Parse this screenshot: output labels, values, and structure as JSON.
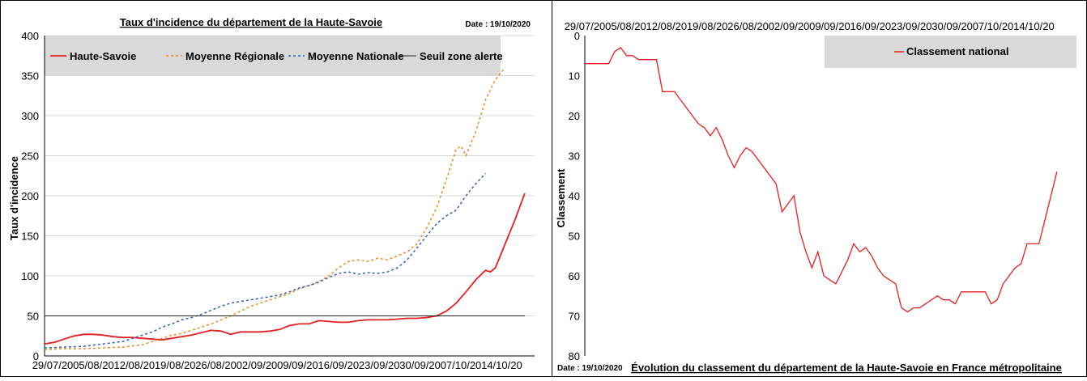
{
  "left": {
    "title": "Taux d'incidence du département de la Haute-Savoie",
    "date": "Date : 19/10/2020",
    "ylabel": "Taux d'incidence"
  },
  "right": {
    "date": "Date : 19/10/2020",
    "footer": "Évolution du classement du département de la Haute-Savoie en France métropolitaine",
    "ylabel": "Classement"
  },
  "colors": {
    "haute_savoie": "#e32020",
    "regionale": "#f08a1e",
    "nationale": "#2f5fb8",
    "seuil": "#222222",
    "legend_bg": "#d9d9d9",
    "grid": "#d9d9d9"
  },
  "chart_data": [
    {
      "type": "line",
      "title": "Taux d'incidence du département de la Haute-Savoie",
      "ylabel": "Taux d'incidence",
      "xlabel": "",
      "ylim": [
        0,
        400
      ],
      "yticks": [
        0,
        50,
        100,
        150,
        200,
        250,
        300,
        350,
        400
      ],
      "xticks": [
        "29/07/20",
        "05/08/20",
        "12/08/20",
        "19/08/20",
        "26/08/20",
        "02/09/20",
        "09/09/20",
        "16/09/20",
        "23/09/20",
        "30/09/20",
        "07/10/20",
        "14/10/20"
      ],
      "grid": "horizontal",
      "legend_position": "top",
      "series": [
        {
          "name": "Haute-Savoie",
          "style": "solid",
          "points": [
            [
              0,
              15
            ],
            [
              2,
              17
            ],
            [
              4,
              21
            ],
            [
              6,
              25
            ],
            [
              8,
              27
            ],
            [
              10,
              27
            ],
            [
              12,
              26
            ],
            [
              14,
              24
            ],
            [
              16,
              23
            ],
            [
              18,
              23
            ],
            [
              20,
              22
            ],
            [
              22,
              21
            ],
            [
              24,
              20
            ],
            [
              26,
              22
            ],
            [
              28,
              24
            ],
            [
              30,
              26
            ],
            [
              32,
              29
            ],
            [
              34,
              32
            ],
            [
              36,
              31
            ],
            [
              38,
              27
            ],
            [
              40,
              30
            ],
            [
              42,
              30
            ],
            [
              44,
              30
            ],
            [
              46,
              31
            ],
            [
              48,
              33
            ],
            [
              50,
              38
            ],
            [
              52,
              40
            ],
            [
              54,
              40
            ],
            [
              56,
              44
            ],
            [
              58,
              43
            ],
            [
              60,
              42
            ],
            [
              62,
              42
            ],
            [
              64,
              44
            ],
            [
              66,
              45
            ],
            [
              68,
              45
            ],
            [
              70,
              45
            ],
            [
              72,
              46
            ],
            [
              74,
              47
            ],
            [
              76,
              47
            ],
            [
              78,
              48
            ],
            [
              80,
              50
            ],
            [
              82,
              56
            ],
            [
              84,
              66
            ],
            [
              86,
              80
            ],
            [
              88,
              95
            ],
            [
              90,
              107
            ],
            [
              91,
              105
            ],
            [
              92,
              110
            ],
            [
              94,
              140
            ],
            [
              96,
              170
            ],
            [
              98,
              203
            ]
          ]
        },
        {
          "name": "Moyenne Régionale",
          "style": "dotted",
          "points": [
            [
              0,
              8
            ],
            [
              4,
              9
            ],
            [
              8,
              9
            ],
            [
              12,
              10
            ],
            [
              16,
              11
            ],
            [
              20,
              14
            ],
            [
              22,
              18
            ],
            [
              24,
              22
            ],
            [
              26,
              26
            ],
            [
              28,
              28
            ],
            [
              30,
              32
            ],
            [
              32,
              36
            ],
            [
              34,
              40
            ],
            [
              36,
              45
            ],
            [
              38,
              50
            ],
            [
              40,
              56
            ],
            [
              42,
              62
            ],
            [
              44,
              66
            ],
            [
              46,
              70
            ],
            [
              48,
              74
            ],
            [
              50,
              78
            ],
            [
              52,
              84
            ],
            [
              54,
              88
            ],
            [
              56,
              93
            ],
            [
              58,
              100
            ],
            [
              60,
              110
            ],
            [
              62,
              118
            ],
            [
              64,
              120
            ],
            [
              66,
              118
            ],
            [
              68,
              122
            ],
            [
              70,
              120
            ],
            [
              72,
              125
            ],
            [
              74,
              130
            ],
            [
              76,
              140
            ],
            [
              78,
              160
            ],
            [
              80,
              185
            ],
            [
              82,
              220
            ],
            [
              84,
              258
            ],
            [
              85,
              262
            ],
            [
              86,
              250
            ],
            [
              88,
              280
            ],
            [
              90,
              320
            ],
            [
              92,
              345
            ],
            [
              94,
              360
            ]
          ]
        },
        {
          "name": "Moyenne Nationale",
          "style": "dotted",
          "points": [
            [
              0,
              10
            ],
            [
              4,
              11
            ],
            [
              8,
              12
            ],
            [
              12,
              15
            ],
            [
              16,
              18
            ],
            [
              18,
              22
            ],
            [
              20,
              26
            ],
            [
              22,
              30
            ],
            [
              24,
              36
            ],
            [
              26,
              40
            ],
            [
              28,
              45
            ],
            [
              30,
              48
            ],
            [
              32,
              52
            ],
            [
              34,
              57
            ],
            [
              36,
              62
            ],
            [
              38,
              66
            ],
            [
              40,
              68
            ],
            [
              42,
              70
            ],
            [
              44,
              72
            ],
            [
              46,
              74
            ],
            [
              48,
              76
            ],
            [
              50,
              80
            ],
            [
              52,
              85
            ],
            [
              54,
              88
            ],
            [
              56,
              92
            ],
            [
              58,
              98
            ],
            [
              60,
              103
            ],
            [
              62,
              105
            ],
            [
              64,
              102
            ],
            [
              66,
              104
            ],
            [
              68,
              103
            ],
            [
              70,
              105
            ],
            [
              72,
              110
            ],
            [
              74,
              120
            ],
            [
              76,
              135
            ],
            [
              78,
              150
            ],
            [
              80,
              165
            ],
            [
              82,
              175
            ],
            [
              84,
              182
            ],
            [
              86,
              200
            ],
            [
              88,
              215
            ],
            [
              90,
              228
            ]
          ]
        },
        {
          "name": "Seuil zone alerte",
          "style": "solid",
          "points": [
            [
              0,
              50
            ],
            [
              98,
              50
            ]
          ]
        }
      ]
    },
    {
      "type": "line",
      "ylabel": "Classement",
      "xlabel": "",
      "ylim": [
        0,
        80
      ],
      "y_inverted": true,
      "yticks": [
        0,
        10,
        20,
        30,
        40,
        50,
        60,
        70,
        80
      ],
      "xticks": [
        "29/07/20",
        "05/08/20",
        "12/08/20",
        "19/08/20",
        "26/08/20",
        "02/09/20",
        "09/09/20",
        "16/09/20",
        "23/09/20",
        "30/09/20",
        "07/10/20",
        "14/10/20"
      ],
      "grid": "none",
      "legend_position": "top-right",
      "series": [
        {
          "name": "Classement national",
          "points": [
            [
              0,
              7
            ],
            [
              2,
              7
            ],
            [
              4,
              7
            ],
            [
              6,
              7
            ],
            [
              8,
              7
            ],
            [
              10,
              4
            ],
            [
              12,
              3
            ],
            [
              14,
              5
            ],
            [
              16,
              5
            ],
            [
              18,
              6
            ],
            [
              20,
              6
            ],
            [
              22,
              6
            ],
            [
              24,
              6
            ],
            [
              26,
              14
            ],
            [
              28,
              14
            ],
            [
              30,
              14
            ],
            [
              32,
              16
            ],
            [
              34,
              18
            ],
            [
              36,
              20
            ],
            [
              38,
              22
            ],
            [
              40,
              23
            ],
            [
              42,
              25
            ],
            [
              44,
              23
            ],
            [
              46,
              26
            ],
            [
              48,
              30
            ],
            [
              50,
              33
            ],
            [
              52,
              30
            ],
            [
              54,
              28
            ],
            [
              56,
              29
            ],
            [
              58,
              31
            ],
            [
              60,
              33
            ],
            [
              62,
              35
            ],
            [
              64,
              37
            ],
            [
              66,
              44
            ],
            [
              68,
              42
            ],
            [
              70,
              40
            ],
            [
              72,
              49
            ],
            [
              74,
              54
            ],
            [
              76,
              58
            ],
            [
              78,
              54
            ],
            [
              80,
              60
            ],
            [
              82,
              61
            ],
            [
              84,
              62
            ],
            [
              86,
              59
            ],
            [
              88,
              56
            ],
            [
              90,
              52
            ],
            [
              92,
              54
            ],
            [
              94,
              53
            ],
            [
              96,
              55
            ],
            [
              98,
              58
            ],
            [
              100,
              60
            ],
            [
              102,
              61
            ],
            [
              104,
              62
            ],
            [
              106,
              68
            ],
            [
              108,
              69
            ],
            [
              110,
              68
            ],
            [
              112,
              68
            ],
            [
              114,
              67
            ],
            [
              116,
              66
            ],
            [
              118,
              65
            ],
            [
              120,
              66
            ],
            [
              122,
              66
            ],
            [
              124,
              67
            ],
            [
              126,
              64
            ],
            [
              128,
              64
            ],
            [
              130,
              64
            ],
            [
              132,
              64
            ],
            [
              134,
              64
            ],
            [
              136,
              67
            ],
            [
              138,
              66
            ],
            [
              140,
              62
            ],
            [
              142,
              60
            ],
            [
              144,
              58
            ],
            [
              146,
              57
            ],
            [
              148,
              52
            ],
            [
              150,
              52
            ],
            [
              152,
              52
            ],
            [
              154,
              46
            ],
            [
              156,
              40
            ],
            [
              158,
              34
            ]
          ]
        }
      ]
    }
  ]
}
